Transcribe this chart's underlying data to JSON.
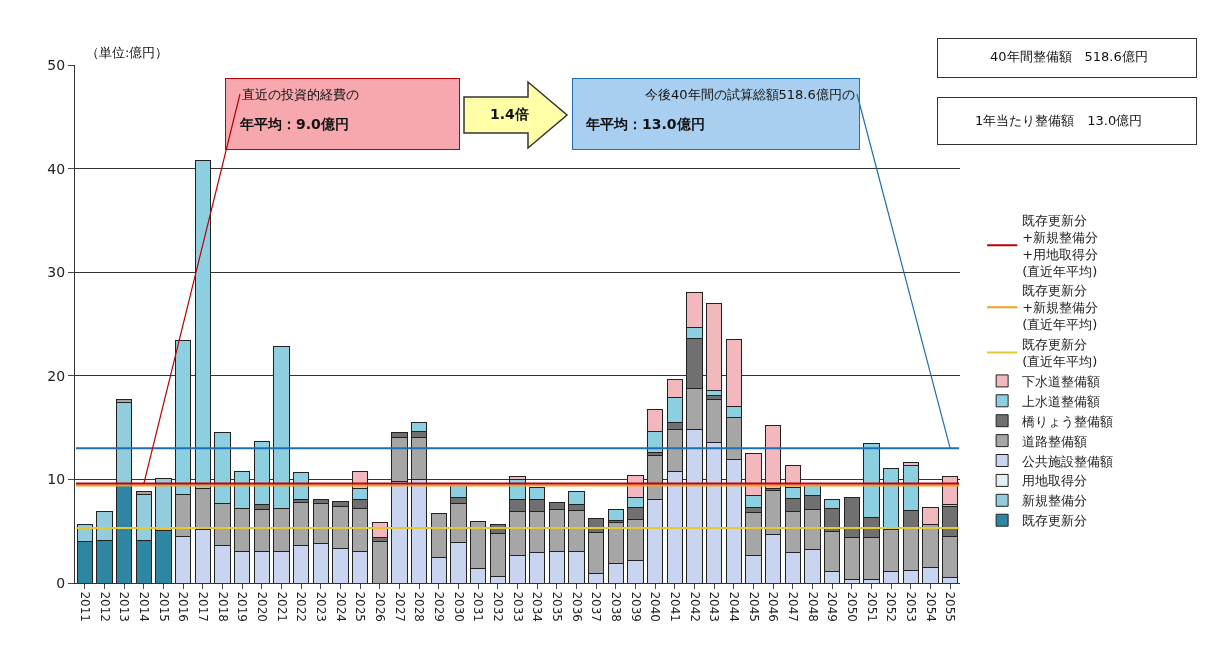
{
  "chart_data": {
    "type": "bar",
    "stacked": true,
    "ylabel": "（単位:億円）",
    "categories": [
      "2011",
      "2012",
      "2013",
      "2014",
      "2015",
      "2016",
      "2017",
      "2018",
      "2019",
      "2020",
      "2021",
      "2022",
      "2023",
      "2024",
      "2025",
      "2026",
      "2027",
      "2028",
      "2029",
      "2030",
      "2031",
      "2032",
      "2033",
      "2034",
      "2035",
      "2036",
      "2037",
      "2038",
      "2039",
      "2040",
      "2041",
      "2042",
      "2043",
      "2044",
      "2045",
      "2046",
      "2047",
      "2048",
      "2049",
      "2050",
      "2051",
      "2052",
      "2053",
      "2054",
      "2055"
    ],
    "series": [
      {
        "name": "既存更新分",
        "color": "#2e86a3",
        "values": [
          4.0,
          4.1,
          9.4,
          4.1,
          5.1,
          null,
          null,
          null,
          null,
          null,
          null,
          null,
          null,
          null,
          null,
          null,
          null,
          null,
          null,
          null,
          null,
          null,
          null,
          null,
          null,
          null,
          null,
          null,
          null,
          null,
          null,
          null,
          null,
          null,
          null,
          null,
          null,
          null,
          null,
          null,
          null,
          null,
          null,
          null,
          null
        ]
      },
      {
        "name": "新規整備分",
        "color": "#93cddd",
        "values": [
          1.6,
          2.8,
          8.0,
          4.4,
          5.0,
          null,
          null,
          null,
          null,
          null,
          null,
          null,
          null,
          null,
          null,
          null,
          null,
          null,
          null,
          null,
          null,
          null,
          null,
          null,
          null,
          null,
          null,
          null,
          null,
          null,
          null,
          null,
          null,
          null,
          null,
          null,
          null,
          null,
          null,
          null,
          null,
          null,
          null,
          null,
          null
        ]
      },
      {
        "name": "用地取得分",
        "color": "#e2eff5",
        "values": [
          null,
          null,
          null,
          null,
          null,
          null,
          null,
          null,
          null,
          null,
          null,
          null,
          null,
          null,
          null,
          null,
          null,
          null,
          null,
          null,
          null,
          null,
          null,
          null,
          null,
          null,
          null,
          null,
          null,
          null,
          null,
          null,
          null,
          null,
          null,
          null,
          null,
          null,
          null,
          null,
          null,
          null,
          null,
          null,
          null
        ]
      },
      {
        "name": "公共施設整備額",
        "color": "#c8d4f0",
        "values": [
          null,
          null,
          null,
          null,
          null,
          4.5,
          5.2,
          3.6,
          3.0,
          3.0,
          3.0,
          3.6,
          3.8,
          3.3,
          3.0,
          null,
          9.8,
          10.0,
          2.5,
          3.9,
          1.4,
          0.6,
          2.7,
          2.9,
          3.0,
          3.0,
          0.9,
          1.9,
          2.2,
          8.1,
          10.8,
          14.8,
          13.6,
          11.9,
          2.7,
          4.7,
          2.9,
          3.2,
          1.1,
          0.3,
          0.3,
          1.1,
          1.2,
          1.5,
          0.5
        ]
      },
      {
        "name": "道路整備額",
        "color": "#a6a6a6",
        "values": [
          null,
          null,
          0.3,
          0.3,
          null,
          4.0,
          3.9,
          4.1,
          4.2,
          4.1,
          4.2,
          4.2,
          3.9,
          4.1,
          4.2,
          4.0,
          4.2,
          4.0,
          4.2,
          3.8,
          4.5,
          4.2,
          4.2,
          4.0,
          4.1,
          4.0,
          4.0,
          3.9,
          3.9,
          4.2,
          4.0,
          4.0,
          4.1,
          4.1,
          4.1,
          4.2,
          4.0,
          3.9,
          3.9,
          4.1,
          4.1,
          4.1,
          4.1,
          4.1,
          4.0
        ]
      },
      {
        "name": "橋りょう整備額",
        "color": "#707070",
        "values": [
          null,
          null,
          null,
          null,
          null,
          null,
          null,
          null,
          null,
          0.5,
          null,
          0.3,
          0.4,
          0.5,
          0.9,
          0.4,
          0.5,
          0.6,
          null,
          0.6,
          null,
          0.8,
          1.2,
          1.2,
          0.7,
          0.6,
          1.3,
          0.2,
          1.2,
          0.3,
          0.7,
          4.8,
          0.4,
          null,
          0.5,
          0.2,
          1.3,
          1.3,
          2.2,
          3.9,
          1.9,
          null,
          1.7,
          null,
          2.9
        ]
      },
      {
        "name": "上水道整備額",
        "color": "#8ccfe0",
        "values": [
          null,
          null,
          null,
          null,
          null,
          14.9,
          31.7,
          6.8,
          3.6,
          6.1,
          15.6,
          2.6,
          null,
          null,
          1.0,
          null,
          null,
          0.9,
          null,
          1.1,
          null,
          null,
          1.9,
          1.1,
          null,
          1.2,
          null,
          1.1,
          1.0,
          2.0,
          2.4,
          1.1,
          0.5,
          1.0,
          1.1,
          null,
          1.0,
          1.0,
          0.9,
          null,
          7.2,
          5.9,
          4.3,
          null,
          0.2
        ]
      },
      {
        "name": "下水道整備額",
        "color": "#f2b8bd",
        "values": [
          null,
          null,
          null,
          null,
          null,
          null,
          null,
          null,
          null,
          null,
          null,
          null,
          null,
          null,
          1.7,
          1.4,
          null,
          null,
          null,
          null,
          null,
          null,
          0.3,
          null,
          null,
          null,
          null,
          null,
          2.1,
          2.1,
          1.7,
          3.3,
          8.4,
          6.5,
          4.1,
          6.1,
          2.1,
          null,
          null,
          null,
          null,
          null,
          0.3,
          1.7,
          2.7
        ]
      }
    ],
    "ref_lines": [
      {
        "axis": "y",
        "value": 9.6,
        "label": "既存更新分\n+新規整備分\n+用地取得分\n(直近年平均)",
        "color": "#c00000"
      },
      {
        "axis": "y",
        "value": 9.4,
        "label": "既存更新分\n+新規整備分\n(直近年平均)",
        "color": "#f0a020"
      },
      {
        "axis": "y",
        "value": 5.3,
        "label": "既存更新分\n(直近年平均)",
        "color": "#e6c830"
      },
      {
        "axis": "y",
        "value": 13.0,
        "color": "#1f6fb4"
      }
    ],
    "annotations": [
      {
        "text": "直近の投資的経費の",
        "x": "2014",
        "y": 9.6
      },
      "年平均：9.0億円",
      "1.4倍",
      {
        "text": "今後40年間の試算総額518.6億円の",
        "x": "2055",
        "y": 13.0
      },
      "年平均：13.0億円",
      "40年間整備額　518.6億円",
      "1年当たり整備額　13.0億円"
    ],
    "ylim": [
      0,
      50
    ],
    "yticks": [
      0,
      10,
      20,
      30,
      40,
      50
    ],
    "grid": "y",
    "legend": "right"
  }
}
